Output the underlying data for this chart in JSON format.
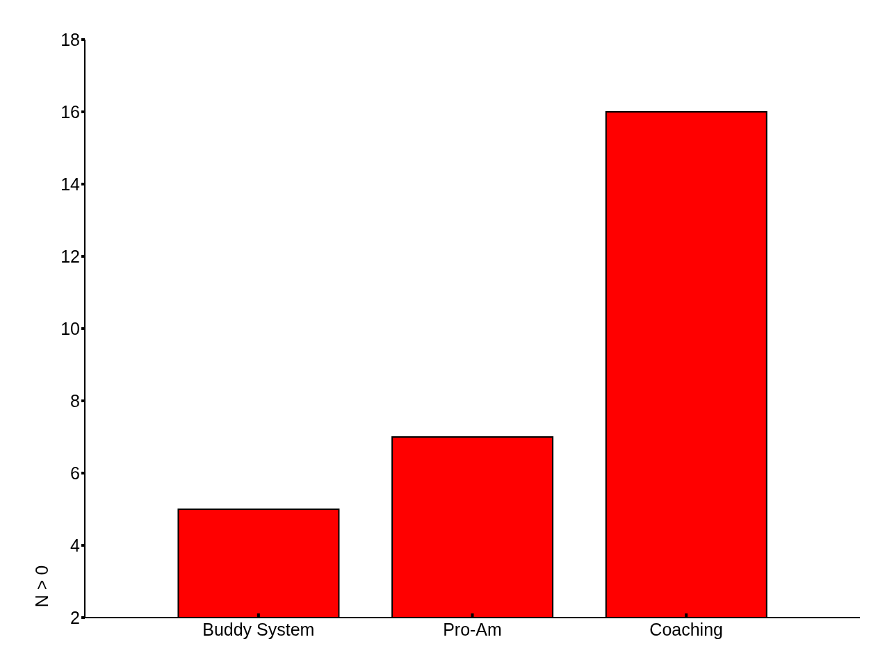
{
  "chart_data": {
    "type": "bar",
    "ylabel": "N > 0",
    "categories": [
      "Buddy System",
      "Pro-Am",
      "Coaching"
    ],
    "values": [
      5,
      7,
      16
    ],
    "color": "#ff0000",
    "ylim": [
      2,
      18
    ],
    "yticks": [
      2,
      4,
      6,
      8,
      10,
      12,
      14,
      16,
      18
    ],
    "grid": false
  }
}
